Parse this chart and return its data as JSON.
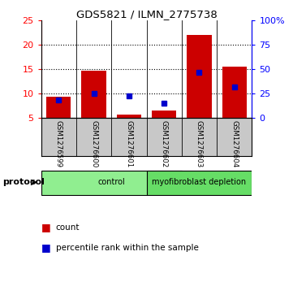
{
  "title": "GDS5821 / ILMN_2775738",
  "samples": [
    "GSM1276599",
    "GSM1276600",
    "GSM1276601",
    "GSM1276602",
    "GSM1276603",
    "GSM1276604"
  ],
  "counts": [
    9.3,
    14.7,
    5.6,
    6.5,
    22.0,
    15.5
  ],
  "percentiles": [
    18,
    25,
    22,
    15,
    47,
    32
  ],
  "ylim_left": [
    5,
    25
  ],
  "ylim_right": [
    0,
    100
  ],
  "yticks_left": [
    5,
    10,
    15,
    20,
    25
  ],
  "yticks_right": [
    0,
    25,
    50,
    75,
    100
  ],
  "ytick_labels_right": [
    "0",
    "25",
    "50",
    "75",
    "100%"
  ],
  "groups": [
    {
      "label": "control",
      "start": 0,
      "end": 3,
      "color": "#90EE90"
    },
    {
      "label": "myofibroblast depletion",
      "start": 3,
      "end": 5,
      "color": "#66DD66"
    }
  ],
  "bar_color": "#CC0000",
  "dot_color": "#0000CC",
  "bar_width": 0.7,
  "bg_color": "#FFFFFF",
  "label_area_color": "#C8C8C8",
  "protocol_label": "protocol",
  "legend_count": "count",
  "legend_pct": "percentile rank within the sample"
}
